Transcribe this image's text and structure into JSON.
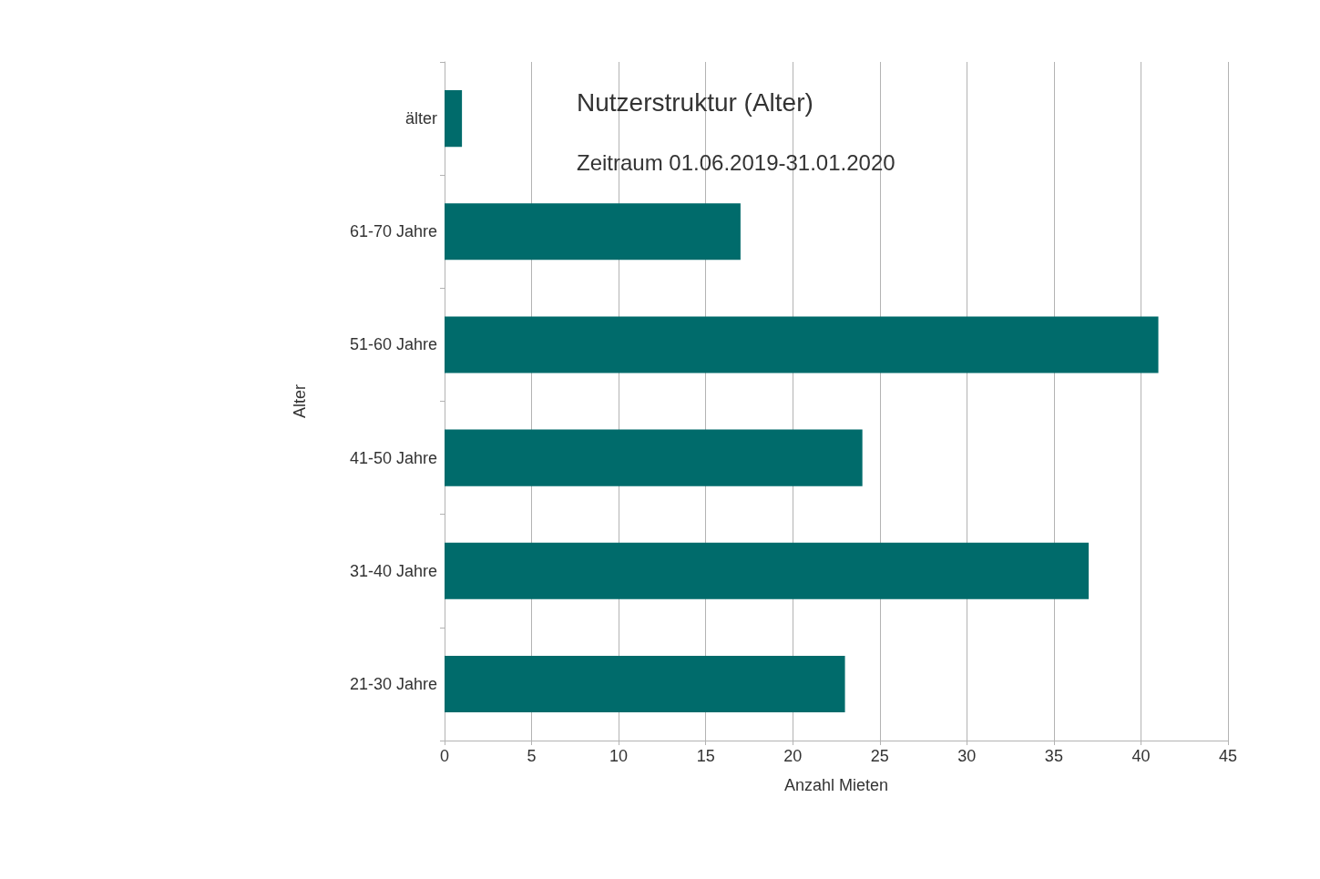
{
  "chart_data": {
    "type": "bar",
    "orientation": "horizontal",
    "title": "Nutzerstruktur (Alter)",
    "subtitle": "Zeitraum 01.06.2019-31.01.2020",
    "xlabel": "Anzahl Mieten",
    "ylabel": "Alter",
    "categories": [
      "älter",
      "61-70 Jahre",
      "51-60 Jahre",
      "41-50 Jahre",
      "31-40 Jahre",
      "21-30 Jahre"
    ],
    "values": [
      1,
      17,
      41,
      24,
      37,
      23
    ],
    "color": "#006b6b",
    "xlim": [
      0,
      45
    ],
    "xticks": [
      0,
      5,
      10,
      15,
      20,
      25,
      30,
      35,
      40,
      45
    ],
    "grid": "x"
  }
}
